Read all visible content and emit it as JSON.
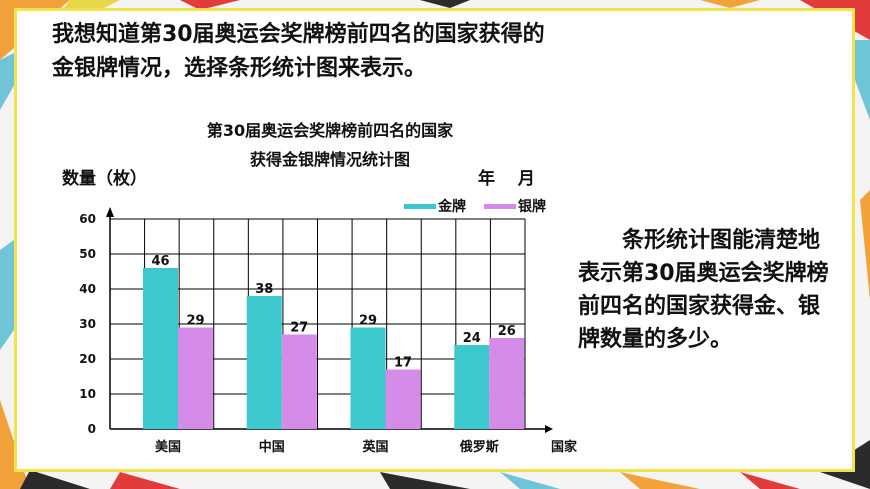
{
  "intro": {
    "line1": "我想知道第30届奥运会奖牌榜前四名的国家获得的",
    "line2": "金银牌情况，选择条形统计图来表示。"
  },
  "side_text": "　　条形统计图能清楚地表示第30届奥运会奖牌榜前四名的国家获得金、银牌数量的多少。",
  "colors": {
    "gold": "#3cc8cc",
    "silver": "#d58be8",
    "accent": "#f0e44a"
  },
  "chart_data": {
    "type": "bar",
    "title_line1": "第30届奥运会奖牌榜前四名的国家",
    "title_line2": "获得金银牌情况统计图",
    "date_label": "年　 月",
    "ylabel": "数量（枚）",
    "xlabel": "国家",
    "categories": [
      "美国",
      "中国",
      "英国",
      "俄罗斯"
    ],
    "series": [
      {
        "name": "金牌",
        "values": [
          46,
          38,
          29,
          24
        ]
      },
      {
        "name": "银牌",
        "values": [
          29,
          27,
          17,
          26
        ]
      }
    ],
    "ylim": [
      0,
      60
    ],
    "yticks": [
      "0",
      "10",
      "20",
      "30",
      "40",
      "50",
      "60"
    ],
    "grid": true,
    "legend": "top-right"
  }
}
